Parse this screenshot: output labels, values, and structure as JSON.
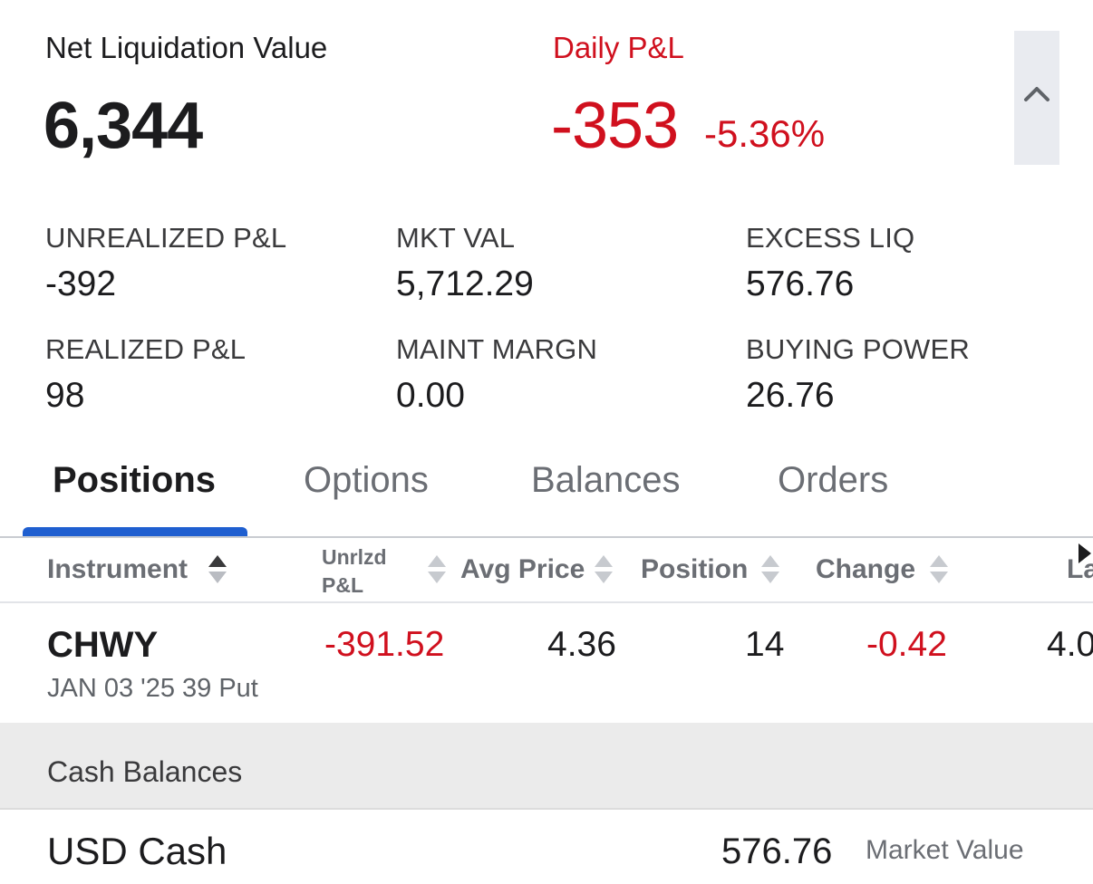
{
  "summary": {
    "net_liq_label": "Net Liquidation Value",
    "net_liq_value": "6,344",
    "daily_pl_label": "Daily P&L",
    "daily_pl_value": "-353",
    "daily_pl_pct": "-5.36%"
  },
  "metrics": [
    {
      "label": "UNREALIZED P&L",
      "value": "-392"
    },
    {
      "label": "MKT VAL",
      "value": "5,712.29"
    },
    {
      "label": "EXCESS LIQ",
      "value": "576.76"
    },
    {
      "label": "REALIZED P&L",
      "value": "98"
    },
    {
      "label": "MAINT MARGN",
      "value": "0.00"
    },
    {
      "label": "BUYING POWER",
      "value": "26.76"
    }
  ],
  "tabs": [
    "Positions",
    "Options",
    "Balances",
    "Orders"
  ],
  "table": {
    "headers": {
      "instrument": "Instrument",
      "unrlzd_line1": "Unrlzd",
      "unrlzd_line2": "P&L",
      "avg_price": "Avg Price",
      "position": "Position",
      "change": "Change",
      "last_partial": "La"
    },
    "rows": [
      {
        "symbol": "CHWY",
        "description": "JAN 03 '25 39 Put",
        "unrlzd_pl": "-391.52",
        "avg_price": "4.36",
        "position": "14",
        "change": "-0.42",
        "last_partial": "4.0"
      }
    ]
  },
  "cash": {
    "section_title": "Cash Balances",
    "label": "USD Cash",
    "value": "576.76",
    "value_caption": "Market Value"
  },
  "colors": {
    "negative": "#d0101e",
    "positive": "#138a3a",
    "active_tab": "#1f5fd0"
  },
  "icons": [
    "chevron-up-icon",
    "sort-icon",
    "scroll-right-icon"
  ]
}
